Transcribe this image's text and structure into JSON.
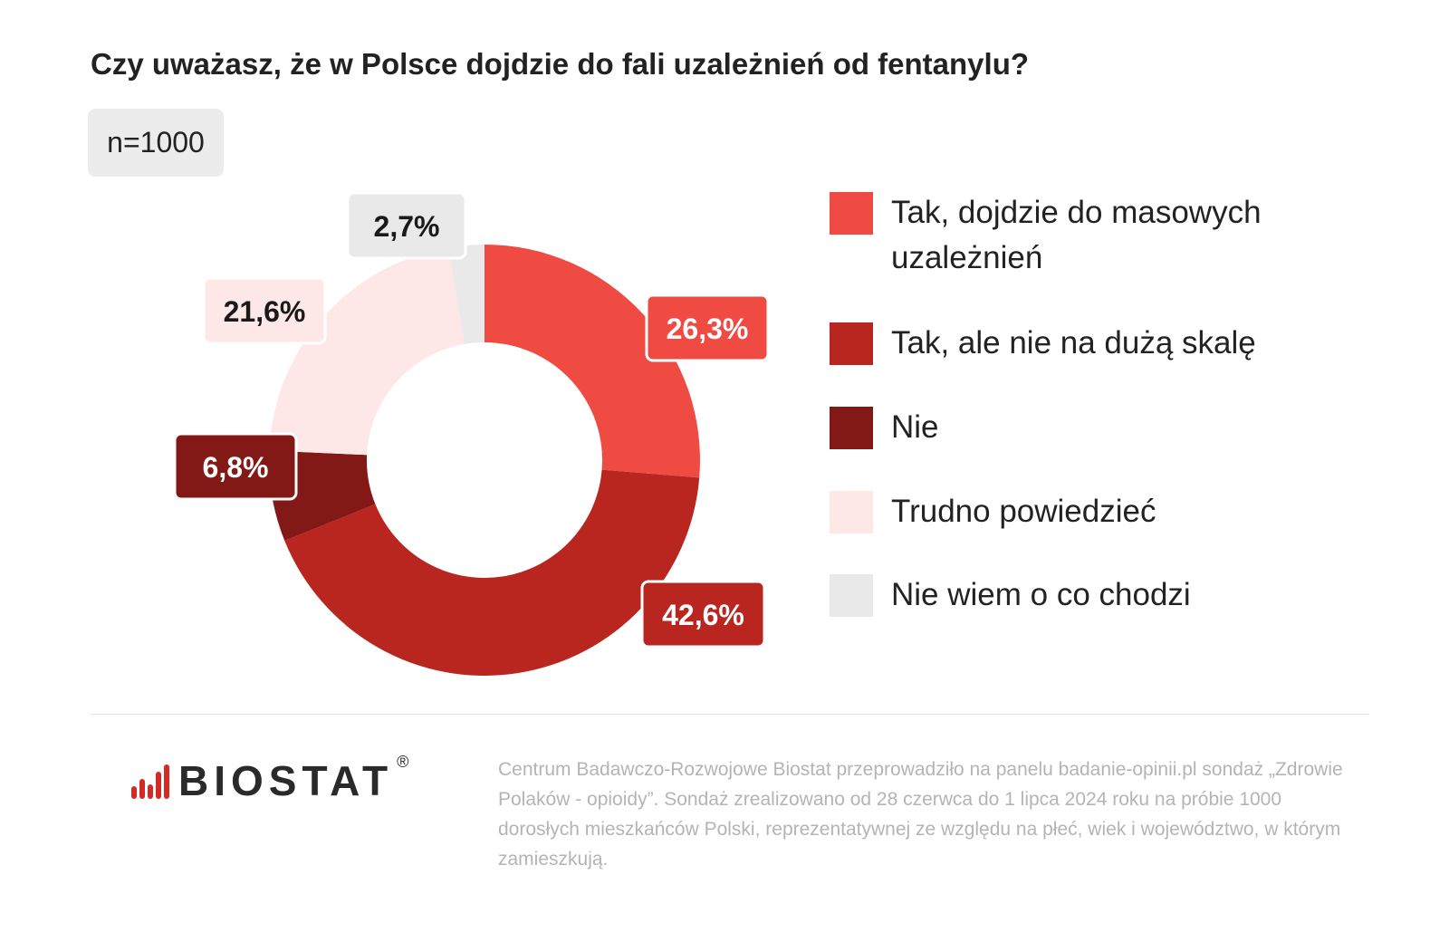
{
  "header": {
    "title": "Czy uważasz, że w Polsce dojdzie do fali uzależnień od fentanylu?",
    "sample": "n=1000"
  },
  "chart_data": {
    "type": "pie",
    "title": "Czy uważasz, że w Polsce dojdzie do fali uzależnień od fentanylu?",
    "donut": true,
    "slices": [
      {
        "label": "Tak, dojdzie do masowych uzależnień",
        "value": 26.3,
        "display": "26,3%",
        "color": "#ef4b42",
        "text_color": "#ffffff"
      },
      {
        "label": "Tak, ale nie na dużą skalę",
        "value": 42.6,
        "display": "42,6%",
        "color": "#b9251f",
        "text_color": "#ffffff"
      },
      {
        "label": "Nie",
        "value": 6.8,
        "display": "6,8%",
        "color": "#821916",
        "text_color": "#ffffff"
      },
      {
        "label": "Trudno powiedzieć",
        "value": 21.6,
        "display": "21,6%",
        "color": "#fde8e7",
        "text_color": "#1a1a1a"
      },
      {
        "label": "Nie wiem o co chodzi",
        "value": 2.7,
        "display": "2,7%",
        "color": "#e9e9e9",
        "text_color": "#1a1a1a"
      }
    ],
    "legend_position": "right"
  },
  "footer": {
    "brand": "BIOSTAT",
    "registered": "®",
    "note": "Centrum Badawczo-Rozwojowe Biostat przeprowadziło na panelu badanie-opinii.pl sondaż „Zdrowie Polaków - opioidy”. Sondaż zrealizowano od 28 czerwca do 1 lipca 2024 roku na próbie 1000 dorosłych mieszkańców Polski, reprezentatywnej ze względu na płeć, wiek i województwo, w którym zamieszkują."
  },
  "colors": {
    "logo_red": "#d42a24",
    "label_border": "#ffffff"
  }
}
